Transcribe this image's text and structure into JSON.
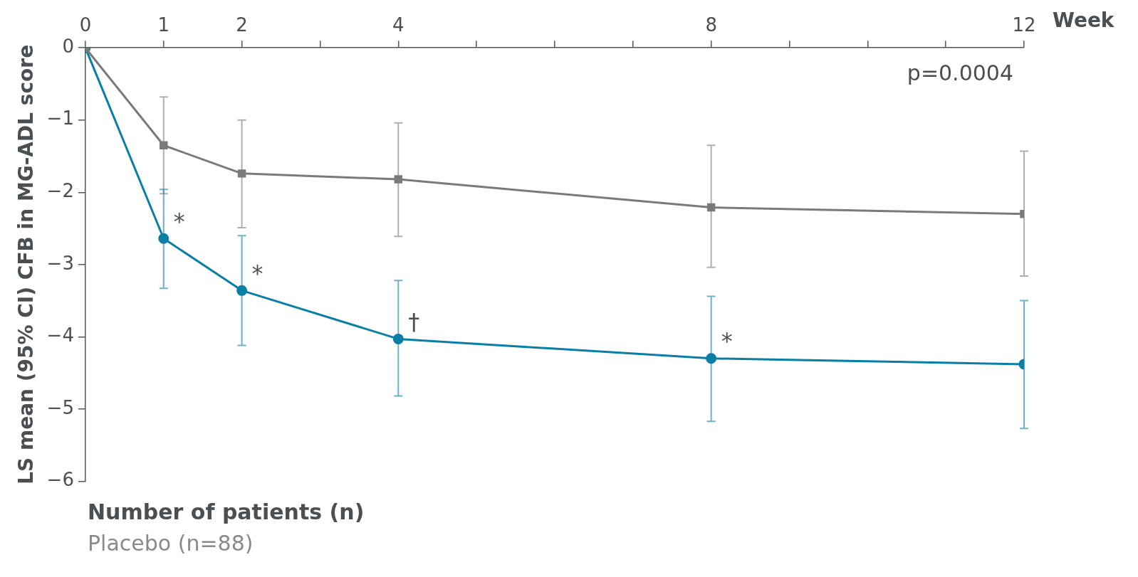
{
  "chart_data": {
    "type": "line",
    "xlabel": "Week",
    "ylabel": "LS mean (95% CI) CFB in MG-ADL score",
    "x": [
      0,
      1,
      2,
      4,
      8,
      12
    ],
    "series": [
      {
        "name": null,
        "color": "#7a7a7a",
        "marker": "square",
        "values": [
          0,
          -1.35,
          -1.74,
          -1.82,
          -2.21,
          -2.3
        ],
        "errors": [
          null,
          [
            -2.02,
            -0.68
          ],
          [
            -2.49,
            -1.0
          ],
          [
            -2.61,
            -1.04
          ],
          [
            -3.04,
            -1.35
          ],
          [
            -3.16,
            -1.43
          ]
        ]
      },
      {
        "name": null,
        "color": "#0a7fa6",
        "marker": "circle",
        "values": [
          0,
          -2.64,
          -3.36,
          -4.03,
          -4.3,
          -4.38
        ],
        "errors": [
          null,
          [
            -3.33,
            -1.96
          ],
          [
            -4.12,
            -2.6
          ],
          [
            -4.82,
            -3.22
          ],
          [
            -5.17,
            -3.44
          ],
          [
            -5.27,
            -3.5
          ]
        ]
      }
    ],
    "xlim": [
      0,
      12
    ],
    "xticks": [
      0,
      1,
      2,
      {
        "value": 3,
        "label": null
      },
      4,
      {
        "value": 5,
        "label": null
      },
      {
        "value": 6,
        "label": null
      },
      {
        "value": 7,
        "label": null
      },
      8,
      {
        "value": 9,
        "label": null
      },
      {
        "value": 10,
        "label": null
      },
      {
        "value": 11,
        "label": null
      },
      12
    ],
    "ylim": [
      -6,
      0
    ],
    "yticks": [
      {
        "value": -6,
        "label": "−6"
      },
      {
        "value": -5,
        "label": "−5"
      },
      {
        "value": -4,
        "label": "−4"
      },
      {
        "value": -3,
        "label": "−3"
      },
      {
        "value": -2,
        "label": "−2"
      },
      {
        "value": -1,
        "label": "−1"
      },
      0
    ],
    "grid": false,
    "legend": false,
    "line_style": "solid",
    "annotations": [
      "p=0.0004",
      {
        "text": "*",
        "x": 1,
        "y": -2.64
      },
      {
        "text": "*",
        "x": 2,
        "y": -3.36
      },
      {
        "text": "†",
        "x": 4,
        "y": -4.03
      },
      {
        "text": "*",
        "x": 8,
        "y": -4.3
      },
      "Number of patients (n)",
      "Placebo (n=88)"
    ]
  }
}
